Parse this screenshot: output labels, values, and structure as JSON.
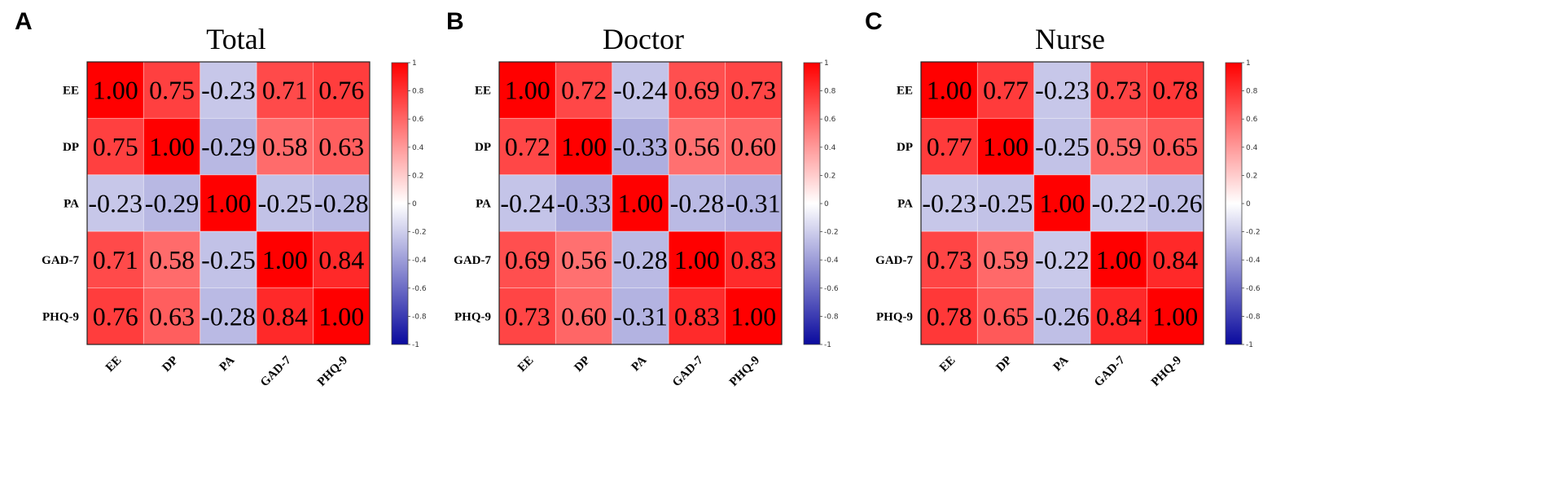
{
  "chart_data": [
    {
      "type": "heatmap",
      "panel": "A",
      "title": "Total",
      "rows": [
        "EE",
        "DP",
        "PA",
        "GAD-7",
        "PHQ-9"
      ],
      "cols": [
        "EE",
        "DP",
        "PA",
        "GAD-7",
        "PHQ-9"
      ],
      "values": [
        [
          1.0,
          0.75,
          -0.23,
          0.71,
          0.76
        ],
        [
          0.75,
          1.0,
          -0.29,
          0.58,
          0.63
        ],
        [
          -0.23,
          -0.29,
          1.0,
          -0.25,
          -0.28
        ],
        [
          0.71,
          0.58,
          -0.25,
          1.0,
          0.84
        ],
        [
          0.76,
          0.63,
          -0.28,
          0.84,
          1.0
        ]
      ],
      "colorbar": {
        "range": [
          -1,
          1
        ],
        "ticks": [
          "1",
          "0.8",
          "0.6",
          "0.4",
          "0.2",
          "0",
          "-0.2",
          "-0.4",
          "-0.6",
          "-0.8",
          "-1"
        ],
        "colors": {
          "low": "#0a0a9e",
          "mid": "#ffffff",
          "high": "#ff0000"
        }
      }
    },
    {
      "type": "heatmap",
      "panel": "B",
      "title": "Doctor",
      "rows": [
        "EE",
        "DP",
        "PA",
        "GAD-7",
        "PHQ-9"
      ],
      "cols": [
        "EE",
        "DP",
        "PA",
        "GAD-7",
        "PHQ-9"
      ],
      "values": [
        [
          1.0,
          0.72,
          -0.24,
          0.69,
          0.73
        ],
        [
          0.72,
          1.0,
          -0.33,
          0.56,
          0.6
        ],
        [
          -0.24,
          -0.33,
          1.0,
          -0.28,
          -0.31
        ],
        [
          0.69,
          0.56,
          -0.28,
          1.0,
          0.83
        ],
        [
          0.73,
          0.6,
          -0.31,
          0.83,
          1.0
        ]
      ],
      "colorbar": {
        "range": [
          -1,
          1
        ],
        "ticks": [
          "1",
          "0.8",
          "0.6",
          "0.4",
          "0.2",
          "0",
          "-0.2",
          "-0.4",
          "-0.6",
          "-0.8",
          "-1"
        ],
        "colors": {
          "low": "#0a0a9e",
          "mid": "#ffffff",
          "high": "#ff0000"
        }
      }
    },
    {
      "type": "heatmap",
      "panel": "C",
      "title": "Nurse",
      "rows": [
        "EE",
        "DP",
        "PA",
        "GAD-7",
        "PHQ-9"
      ],
      "cols": [
        "EE",
        "DP",
        "PA",
        "GAD-7",
        "PHQ-9"
      ],
      "values": [
        [
          1.0,
          0.77,
          -0.23,
          0.73,
          0.78
        ],
        [
          0.77,
          1.0,
          -0.25,
          0.59,
          0.65
        ],
        [
          -0.23,
          -0.25,
          1.0,
          -0.22,
          -0.26
        ],
        [
          0.73,
          0.59,
          -0.22,
          1.0,
          0.84
        ],
        [
          0.78,
          0.65,
          -0.26,
          0.84,
          1.0
        ]
      ],
      "colorbar": {
        "range": [
          -1,
          1
        ],
        "ticks": [
          "1",
          "0.8",
          "0.6",
          "0.4",
          "0.2",
          "0",
          "-0.2",
          "-0.4",
          "-0.6",
          "-0.8",
          "-1"
        ],
        "colors": {
          "low": "#0a0a9e",
          "mid": "#ffffff",
          "high": "#ff0000"
        }
      }
    }
  ]
}
